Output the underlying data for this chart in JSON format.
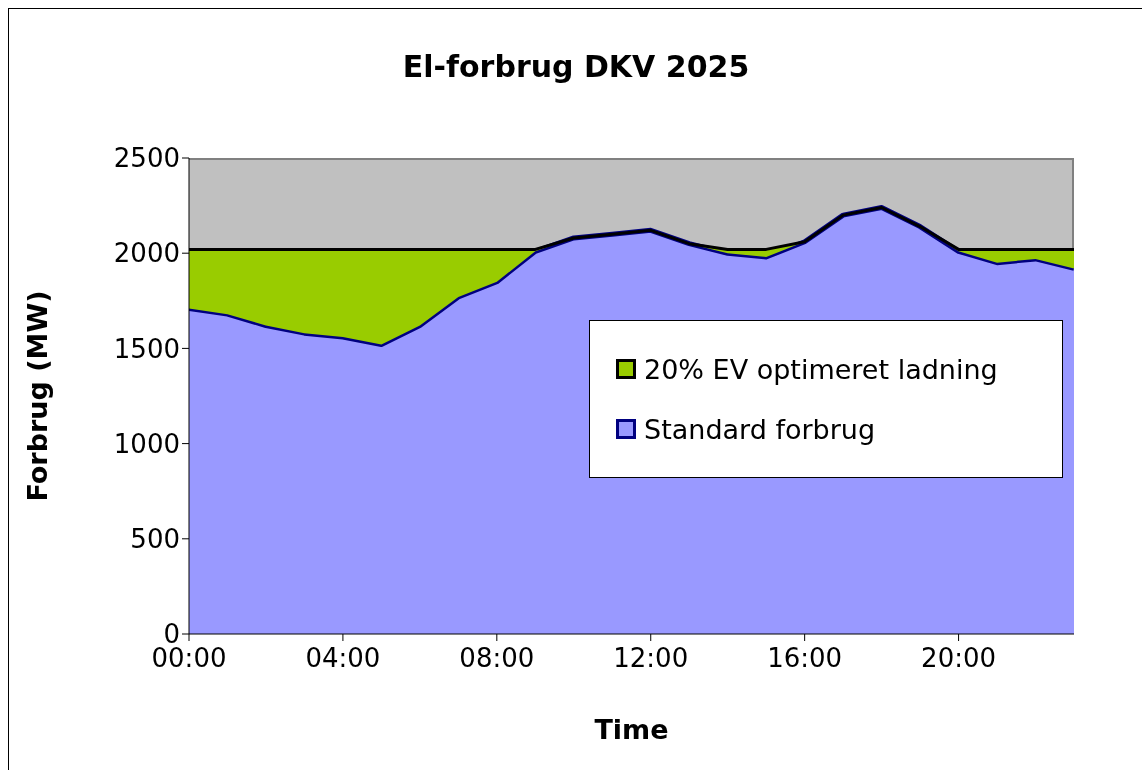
{
  "chart_data": {
    "type": "area",
    "title": "El-forbrug DKV 2025",
    "xlabel": "Time",
    "ylabel": "Forbrug (MW)",
    "stacked": true,
    "legend": "right",
    "grid": false,
    "x": [
      0,
      1,
      2,
      3,
      4,
      5,
      6,
      7,
      8,
      9,
      10,
      11,
      12,
      13,
      14,
      15,
      16,
      17,
      18,
      19,
      20,
      21,
      22,
      23
    ],
    "series": [
      {
        "name": "Standard forbrug",
        "color": "#9999ff",
        "values": [
          1710,
          1680,
          1620,
          1580,
          1560,
          1520,
          1620,
          1770,
          1850,
          2010,
          2080,
          2100,
          2120,
          2050,
          2000,
          1980,
          2060,
          2200,
          2240,
          2140,
          2010,
          1950,
          1970,
          1920
        ]
      },
      {
        "name": "20% EV optimeret ladning",
        "color": "#99cc00",
        "values": [
          310,
          340,
          400,
          440,
          460,
          500,
          400,
          250,
          170,
          10,
          0,
          0,
          0,
          0,
          20,
          40,
          0,
          0,
          0,
          0,
          10,
          70,
          50,
          100
        ]
      }
    ],
    "xlim": [
      0,
      23
    ],
    "xticks": [
      {
        "value": 0,
        "label": "00:00"
      },
      {
        "value": 4,
        "label": "04:00"
      },
      {
        "value": 8,
        "label": "08:00"
      },
      {
        "value": 12,
        "label": "12:00"
      },
      {
        "value": 16,
        "label": "16:00"
      },
      {
        "value": 20,
        "label": "20:00"
      }
    ],
    "ylim": [
      0,
      2500
    ],
    "yticks": [
      0,
      500,
      1000,
      1500,
      2000,
      2500
    ]
  }
}
